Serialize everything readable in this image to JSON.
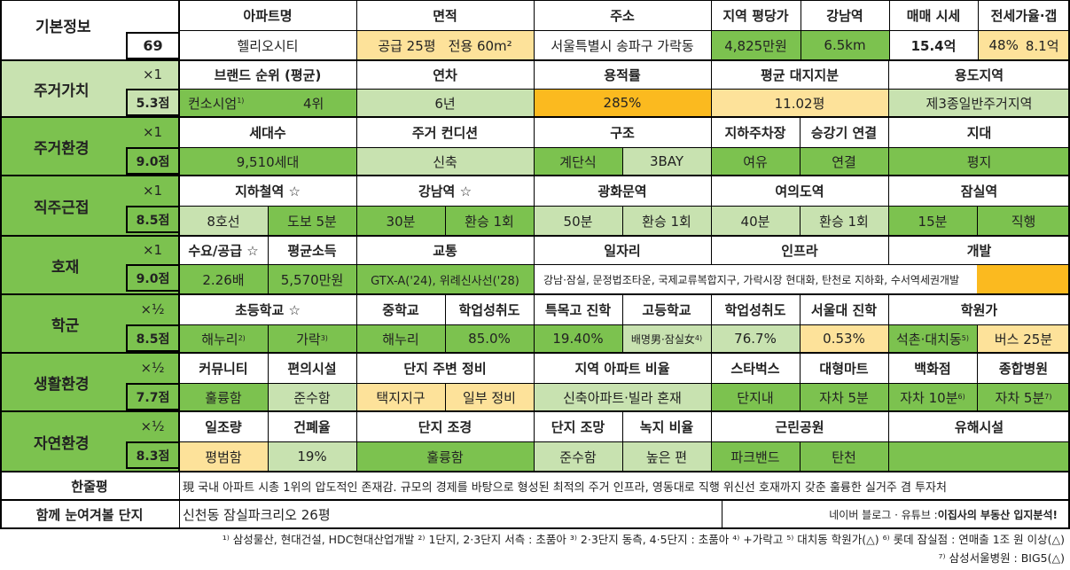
{
  "colors": {
    "green": "#7cc24f",
    "light_green": "#c8e2b0",
    "yellow": "#fde29a",
    "orange": "#fbba1f",
    "white": "#ffffff"
  },
  "basic": {
    "label": "기본정보",
    "score": "69",
    "headers": [
      "아파트명",
      "면적",
      "주소",
      "지역 평당가",
      "강남역",
      "매매 시세",
      "전세가율·갭"
    ],
    "apt_name": "헬리오시티",
    "area_supply": "공급 25평",
    "area_exclusive": "전용 60m²",
    "address": "서울특별시 송파구 가락동",
    "price_per_pyeong": "4,825만원",
    "gangnam_distance": "6.5km",
    "sale_price": "15.4억",
    "jeonse_ratio": "48%",
    "gap": "8.1억"
  },
  "cat1": {
    "label": "주거가치",
    "weight": "×1",
    "score": "5.3점",
    "headers": [
      "브랜드 순위 (평균)",
      "연차",
      "용적률",
      "평균 대지지분",
      "용도지역"
    ],
    "brand": "컨소시엄",
    "brand_rank": "4위",
    "age": "6년",
    "far": "285%",
    "land_share": "11.02평",
    "zoning": "제3종일반주거지역"
  },
  "cat2": {
    "label": "주거환경",
    "weight": "×1",
    "score": "9.0점",
    "headers": [
      "세대수",
      "주거 컨디션",
      "구조",
      "지하주차장",
      "승강기 연결",
      "지대"
    ],
    "households": "9,510세대",
    "condition": "신축",
    "structure_a": "계단식",
    "structure_b": "3BAY",
    "parking": "여유",
    "elevator": "연결",
    "terrain": "평지"
  },
  "cat3": {
    "label": "직주근접",
    "weight": "×1",
    "score": "8.5점",
    "headers": [
      "지하철역 ☆",
      "강남역 ☆",
      "광화문역",
      "여의도역",
      "잠실역"
    ],
    "values": [
      "8호선",
      "도보 5분",
      "30분",
      "환승 1회",
      "50분",
      "환승 1회",
      "40분",
      "환승 1회",
      "15분",
      "직행"
    ]
  },
  "cat4": {
    "label": "호재",
    "weight": "×1",
    "score": "9.0점",
    "headers": [
      "수요/공급 ☆",
      "평균소득",
      "교통",
      "일자리",
      "인프라",
      "개발"
    ],
    "supply": "2.26배",
    "income": "5,570만원",
    "transport": "GTX-A('24), 위례신사선('28)",
    "jobs_infra": "강남·잠실, 문정법조타운, 국제교류복합지구, 가락시장 현대화, 탄천로 지하화, 수서역세권개발"
  },
  "cat5": {
    "label": "학군",
    "weight": "×½",
    "score": "8.5점",
    "headers": [
      "초등학교 ☆",
      "중학교",
      "학업성취도",
      "특목고 진학",
      "고등학교",
      "학업성취도",
      "서울대 진학",
      "학원가"
    ],
    "elem_a": "해누리",
    "elem_b": "가락",
    "middle": "해누리",
    "mid_achieve": "85.0%",
    "special_hs": "19.40%",
    "high": "배명男·잠실女",
    "high_achieve": "76.7%",
    "snu": "0.53%",
    "academy_a": "석촌·대치동",
    "academy_b": "버스 25분"
  },
  "cat6": {
    "label": "생활환경",
    "weight": "×½",
    "score": "7.7점",
    "headers": [
      "커뮤니티",
      "편의시설",
      "단지 주변 정비",
      "지역 아파트 비율",
      "스타벅스",
      "대형마트",
      "백화점",
      "종합병원"
    ],
    "community": "훌륭함",
    "convenience": "준수함",
    "surround_a": "택지지구",
    "surround_b": "일부 정비",
    "apt_ratio": "신축아파트·빌라 혼재",
    "starbucks": "단지내",
    "mart": "자차 5분",
    "dept": "자차 10분",
    "hospital": "자차 5분"
  },
  "cat7": {
    "label": "자연환경",
    "weight": "×½",
    "score": "8.3점",
    "headers": [
      "일조량",
      "건폐율",
      "단지 조경",
      "단지 조망",
      "녹지 비율",
      "근린공원",
      "유해시설"
    ],
    "sunlight": "평범함",
    "bcr": "19%",
    "landscape": "훌륭함",
    "view": "준수함",
    "green_ratio": "높은 편",
    "park_a": "파크밴드",
    "park_b": "탄천",
    "hazard": ""
  },
  "summary": {
    "label": "한줄평",
    "text": "現 국내 아파트 시총 1위의 압도적인 존재감. 규모의 경제를 바탕으로 형성된 최적의 주거 인프라, 영동대로 직행 위신선 호재까지 갖춘 훌륭한 실거주 겸 투자처"
  },
  "compare": {
    "label": "함께 눈여겨볼 단지",
    "value": "신천동 잠실파크리오 26평",
    "credit_prefix": "네이버 블로그 · 유튜브 : ",
    "credit_name": "이집사의 부동산 입지분석!"
  },
  "footnotes": {
    "line1": "¹⁾ 삼성물산, 현대건설, HDC현대산업개발 ²⁾ 1단지, 2·3단지 서측 : 초품아 ³⁾ 2·3단지 동측, 4·5단지 : 초품아 ⁴⁾ +가락고 ⁵⁾ 대치동 학원가(△) ⁶⁾ 롯데 잠실점 : 연매출 1조 원 이상(△)",
    "line2": "⁷⁾ 삼성서울병원 : BIG5(△)"
  },
  "sups": {
    "s1": "1)",
    "s2": "2)",
    "s3": "3)",
    "s4": "4)",
    "s5": "5)",
    "s6": "6)",
    "s7": "7)"
  }
}
